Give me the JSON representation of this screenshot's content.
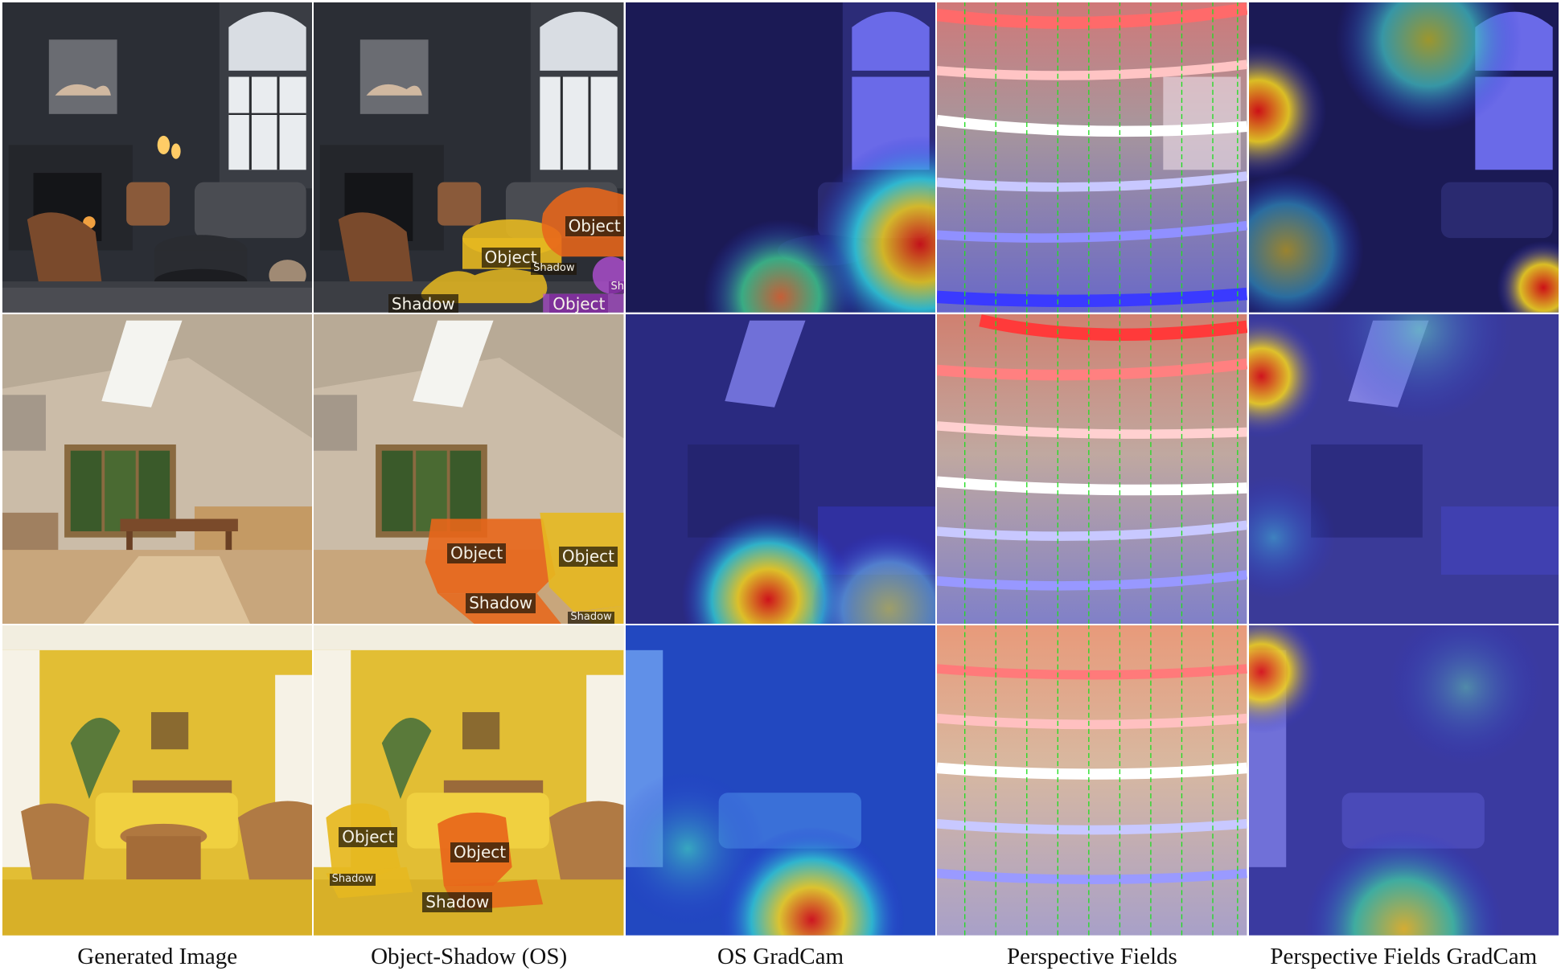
{
  "captions": [
    "Generated Image",
    "Object-Shadow (OS)",
    "OS GradCam",
    "Perspective Fields",
    "Perspective Fields GradCam"
  ],
  "rows": [
    {
      "scene": "dark-living-room",
      "os_labels": [
        "Object",
        "Object",
        "Shadow",
        "Shadow",
        "Object",
        "Shad"
      ]
    },
    {
      "scene": "bright-kitchen",
      "os_labels": [
        "Object",
        "Object",
        "Shadow",
        "Shadow"
      ]
    },
    {
      "scene": "yellow-living-room",
      "os_labels": [
        "Object",
        "Object",
        "Shadow",
        "Shadow"
      ]
    }
  ],
  "colors": {
    "object_yellow": "#e6b820",
    "object_orange": "#e8661a",
    "object_purple": "#b14fd4",
    "gradcam_blue": "#2a2ad8",
    "gradcam_red": "#e01010",
    "perspective_arrow": "#22dd22"
  }
}
